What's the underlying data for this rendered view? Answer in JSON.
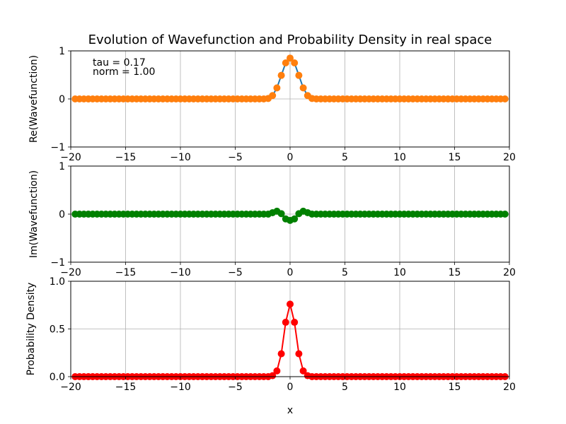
{
  "figure": {
    "title": "Evolution of Wavefunction and Probability Density in real space",
    "annotation_tau": "tau = 0.17",
    "annotation_norm": "norm = 1.00",
    "xlabel": "x"
  },
  "chart_data": [
    {
      "type": "line",
      "ylabel": "Re(Wavefunction)",
      "xlim": [
        -20,
        20
      ],
      "ylim": [
        -1,
        1
      ],
      "xticks": [
        "−20",
        "−15",
        "−10",
        "−5",
        "0",
        "5",
        "10",
        "15",
        "20"
      ],
      "xtick_values": [
        -20,
        -15,
        -10,
        -5,
        0,
        5,
        10,
        15,
        20
      ],
      "yticks": [
        "−1",
        "0",
        "1"
      ],
      "ytick_values": [
        -1,
        0,
        1
      ],
      "grid": true,
      "series": [
        {
          "line_color": "#1f77b4",
          "marker_color": "#ff7f0e",
          "x": [
            -19.6,
            -19.2,
            -18.8,
            -18.4,
            -18,
            -17.6,
            -17.2,
            -16.8,
            -16.4,
            -16,
            -15.6,
            -15.2,
            -14.8,
            -14.4,
            -14,
            -13.6,
            -13.2,
            -12.8,
            -12.4,
            -12,
            -11.6,
            -11.2,
            -10.8,
            -10.4,
            -10,
            -9.6,
            -9.2,
            -8.8,
            -8.4,
            -8,
            -7.6,
            -7.2,
            -6.8,
            -6.4,
            -6,
            -5.6,
            -5.2,
            -4.8,
            -4.4,
            -4,
            -3.6,
            -3.2,
            -2.8,
            -2.4,
            -2,
            -1.6,
            -1.2,
            -0.8,
            -0.4,
            0,
            0.4,
            0.8,
            1.2,
            1.6,
            2,
            2.4,
            2.8,
            3.2,
            3.6,
            4,
            4.4,
            4.8,
            5.2,
            5.6,
            6,
            6.4,
            6.8,
            7.2,
            7.6,
            8,
            8.4,
            8.8,
            9.2,
            9.6,
            10,
            10.4,
            10.8,
            11.2,
            11.6,
            12,
            12.4,
            12.8,
            13.2,
            13.6,
            14,
            14.4,
            14.8,
            15.2,
            15.6,
            16,
            16.4,
            16.8,
            17.2,
            17.6,
            18,
            18.4,
            18.8,
            19.2,
            19.6
          ],
          "y": [
            0,
            0,
            0,
            0,
            0,
            0,
            0,
            0,
            0,
            0,
            0,
            0,
            0,
            0,
            0,
            0,
            0,
            0,
            0,
            0,
            0,
            0,
            0,
            0,
            0,
            0,
            0,
            0,
            0,
            0,
            0,
            0,
            0,
            0,
            0,
            0,
            0,
            0,
            0,
            0,
            0,
            0,
            0,
            0,
            0.01,
            0.07,
            0.23,
            0.49,
            0.75,
            0.85,
            0.75,
            0.49,
            0.23,
            0.07,
            0.01,
            0,
            0,
            0,
            0,
            0,
            0,
            0,
            0,
            0,
            0,
            0,
            0,
            0,
            0,
            0,
            0,
            0,
            0,
            0,
            0,
            0,
            0,
            0,
            0,
            0,
            0,
            0,
            0,
            0,
            0,
            0,
            0,
            0,
            0,
            0,
            0,
            0,
            0,
            0,
            0,
            0,
            0,
            0,
            0
          ]
        }
      ]
    },
    {
      "type": "line",
      "ylabel": "Im(Wavefunction)",
      "xlim": [
        -20,
        20
      ],
      "ylim": [
        -1,
        1
      ],
      "xticks": [
        "−20",
        "−15",
        "−10",
        "−5",
        "0",
        "5",
        "10",
        "15",
        "20"
      ],
      "xtick_values": [
        -20,
        -15,
        -10,
        -5,
        0,
        5,
        10,
        15,
        20
      ],
      "yticks": [
        "−1",
        "0",
        "1"
      ],
      "ytick_values": [
        -1,
        0,
        1
      ],
      "grid": true,
      "series": [
        {
          "line_color": "#008000",
          "marker_color": "#008000",
          "x": [
            -19.6,
            -19.2,
            -18.8,
            -18.4,
            -18,
            -17.6,
            -17.2,
            -16.8,
            -16.4,
            -16,
            -15.6,
            -15.2,
            -14.8,
            -14.4,
            -14,
            -13.6,
            -13.2,
            -12.8,
            -12.4,
            -12,
            -11.6,
            -11.2,
            -10.8,
            -10.4,
            -10,
            -9.6,
            -9.2,
            -8.8,
            -8.4,
            -8,
            -7.6,
            -7.2,
            -6.8,
            -6.4,
            -6,
            -5.6,
            -5.2,
            -4.8,
            -4.4,
            -4,
            -3.6,
            -3.2,
            -2.8,
            -2.4,
            -2,
            -1.6,
            -1.2,
            -0.8,
            -0.4,
            0,
            0.4,
            0.8,
            1.2,
            1.6,
            2,
            2.4,
            2.8,
            3.2,
            3.6,
            4,
            4.4,
            4.8,
            5.2,
            5.6,
            6,
            6.4,
            6.8,
            7.2,
            7.6,
            8,
            8.4,
            8.8,
            9.2,
            9.6,
            10,
            10.4,
            10.8,
            11.2,
            11.6,
            12,
            12.4,
            12.8,
            13.2,
            13.6,
            14,
            14.4,
            14.8,
            15.2,
            15.6,
            16,
            16.4,
            16.8,
            17.2,
            17.6,
            18,
            18.4,
            18.8,
            19.2,
            19.6
          ],
          "y": [
            0,
            0,
            0,
            0,
            0,
            0,
            0,
            0,
            0,
            0,
            0,
            0,
            0,
            0,
            0,
            0,
            0,
            0,
            0,
            0,
            0,
            0,
            0,
            0,
            0,
            0,
            0,
            0,
            0,
            0,
            0,
            0,
            0,
            0,
            0,
            0,
            0,
            0,
            0,
            0,
            0,
            0,
            0,
            0,
            0,
            0.03,
            0.06,
            0.01,
            -0.1,
            -0.13,
            -0.1,
            0.01,
            0.06,
            0.03,
            0,
            0,
            0,
            0,
            0,
            0,
            0,
            0,
            0,
            0,
            0,
            0,
            0,
            0,
            0,
            0,
            0,
            0,
            0,
            0,
            0,
            0,
            0,
            0,
            0,
            0,
            0,
            0,
            0,
            0,
            0,
            0,
            0,
            0,
            0,
            0,
            0,
            0,
            0,
            0,
            0,
            0,
            0,
            0,
            0
          ]
        }
      ]
    },
    {
      "type": "line",
      "ylabel": "Probability Density",
      "xlim": [
        -20,
        20
      ],
      "ylim": [
        0,
        1
      ],
      "xticks": [
        "−20",
        "−15",
        "−10",
        "−5",
        "0",
        "5",
        "10",
        "15",
        "20"
      ],
      "xtick_values": [
        -20,
        -15,
        -10,
        -5,
        0,
        5,
        10,
        15,
        20
      ],
      "yticks": [
        "0.0",
        "0.5",
        "1.0"
      ],
      "ytick_values": [
        0,
        0.5,
        1
      ],
      "grid": true,
      "series": [
        {
          "line_color": "#ff0000",
          "marker_color": "#ff0000",
          "x": [
            -19.6,
            -19.2,
            -18.8,
            -18.4,
            -18,
            -17.6,
            -17.2,
            -16.8,
            -16.4,
            -16,
            -15.6,
            -15.2,
            -14.8,
            -14.4,
            -14,
            -13.6,
            -13.2,
            -12.8,
            -12.4,
            -12,
            -11.6,
            -11.2,
            -10.8,
            -10.4,
            -10,
            -9.6,
            -9.2,
            -8.8,
            -8.4,
            -8,
            -7.6,
            -7.2,
            -6.8,
            -6.4,
            -6,
            -5.6,
            -5.2,
            -4.8,
            -4.4,
            -4,
            -3.6,
            -3.2,
            -2.8,
            -2.4,
            -2,
            -1.6,
            -1.2,
            -0.8,
            -0.4,
            0,
            0.4,
            0.8,
            1.2,
            1.6,
            2,
            2.4,
            2.8,
            3.2,
            3.6,
            4,
            4.4,
            4.8,
            5.2,
            5.6,
            6,
            6.4,
            6.8,
            7.2,
            7.6,
            8,
            8.4,
            8.8,
            9.2,
            9.6,
            10,
            10.4,
            10.8,
            11.2,
            11.6,
            12,
            12.4,
            12.8,
            13.2,
            13.6,
            14,
            14.4,
            14.8,
            15.2,
            15.6,
            16,
            16.4,
            16.8,
            17.2,
            17.6,
            18,
            18.4,
            18.8,
            19.2,
            19.6
          ],
          "y": [
            0,
            0,
            0,
            0,
            0,
            0,
            0,
            0,
            0,
            0,
            0,
            0,
            0,
            0,
            0,
            0,
            0,
            0,
            0,
            0,
            0,
            0,
            0,
            0,
            0,
            0,
            0,
            0,
            0,
            0,
            0,
            0,
            0,
            0,
            0,
            0,
            0,
            0,
            0,
            0,
            0,
            0,
            0,
            0,
            0,
            0.01,
            0.06,
            0.24,
            0.57,
            0.76,
            0.57,
            0.24,
            0.06,
            0.01,
            0,
            0,
            0,
            0,
            0,
            0,
            0,
            0,
            0,
            0,
            0,
            0,
            0,
            0,
            0,
            0,
            0,
            0,
            0,
            0,
            0,
            0,
            0,
            0,
            0,
            0,
            0,
            0,
            0,
            0,
            0,
            0,
            0,
            0,
            0,
            0,
            0,
            0,
            0,
            0,
            0,
            0,
            0,
            0,
            0
          ]
        }
      ],
      "xlabel": "x"
    }
  ]
}
